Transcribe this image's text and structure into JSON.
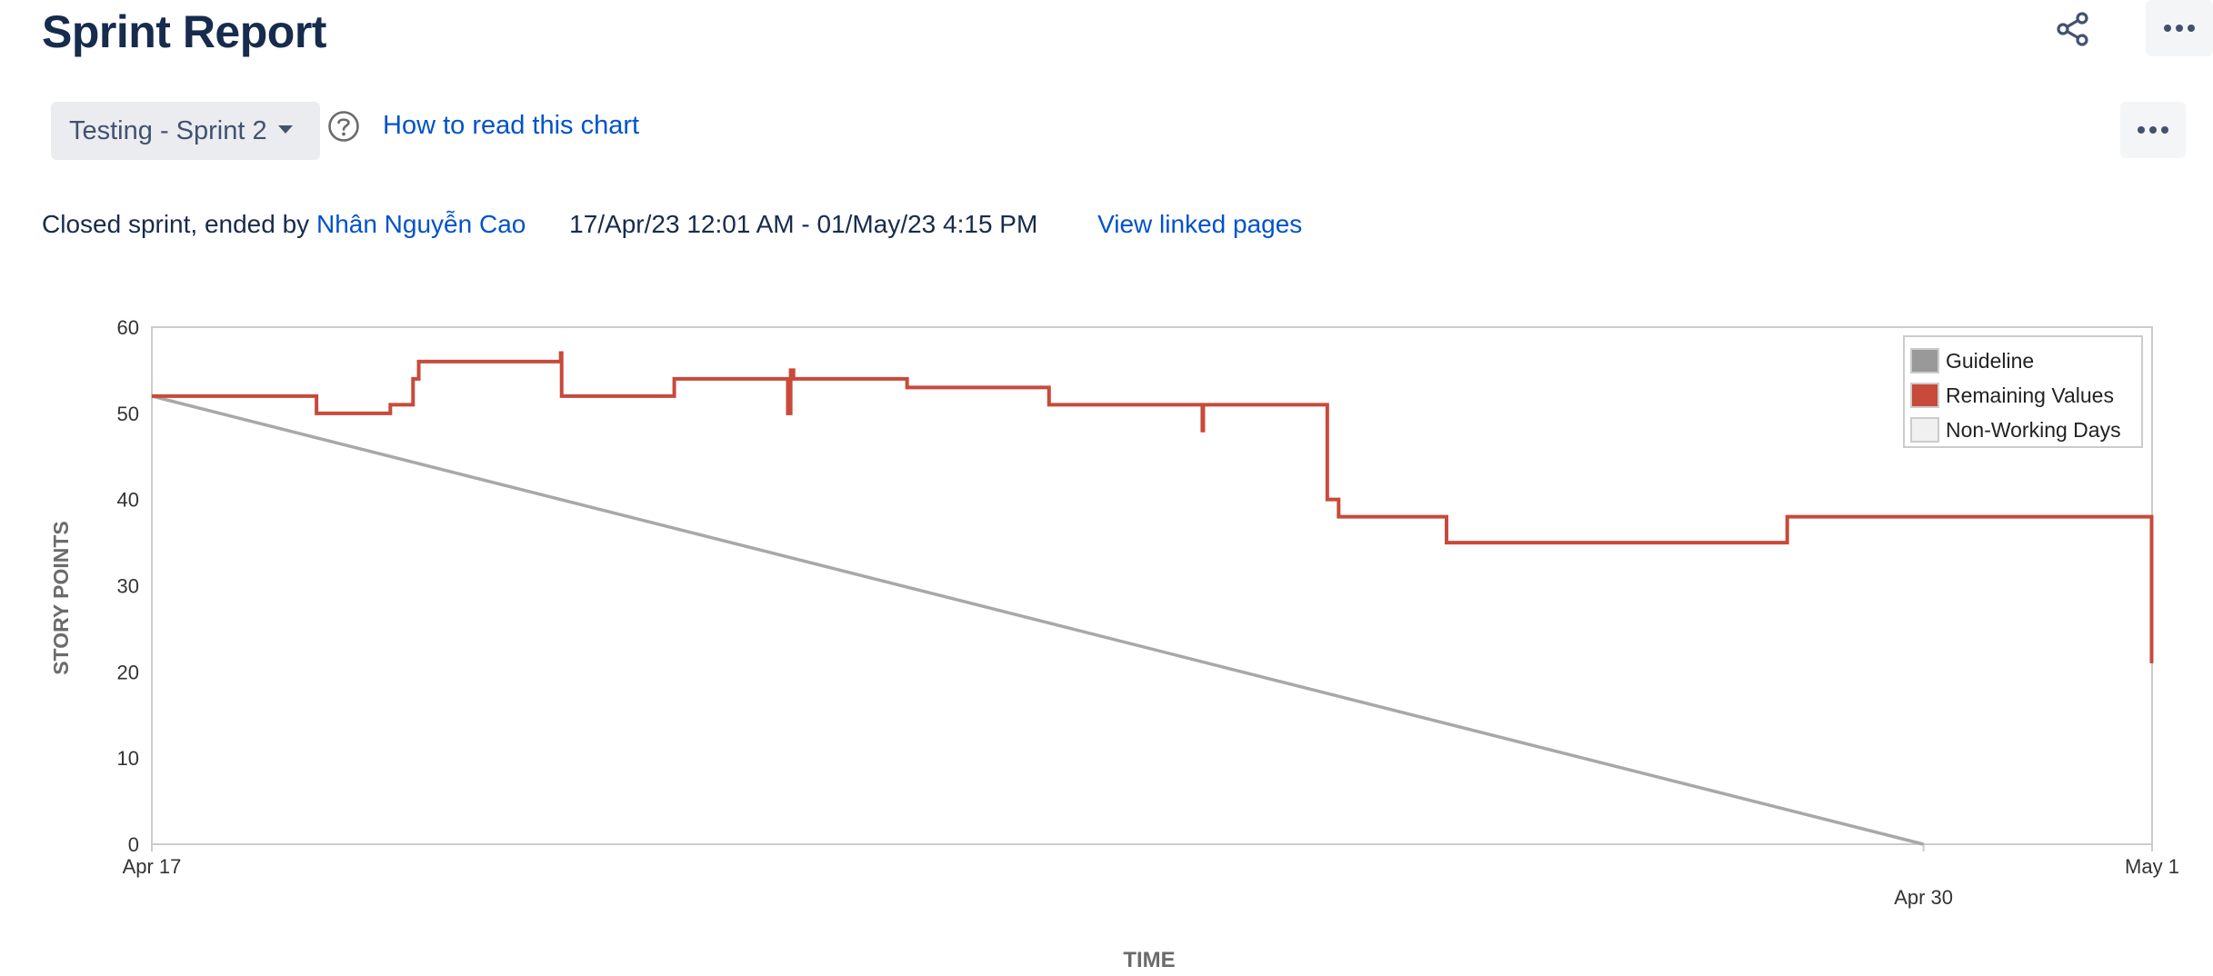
{
  "header": {
    "title": "Sprint Report"
  },
  "toolbar": {
    "sprint_select": "Testing - Sprint 2",
    "help_link": "How to read this chart"
  },
  "sprint_info": {
    "status_prefix": "Closed sprint, ended by",
    "user": "Nhân Nguyễn Cao",
    "date_range": "17/Apr/23 12:01 AM - 01/May/23 4:15 PM",
    "linked_pages": "View linked pages"
  },
  "icons": {
    "share": "share-icon",
    "more": "more-horizontal-icon",
    "help": "question-circle-icon",
    "dropdown": "chevron-down-icon"
  },
  "colors": {
    "guideline": "#a8a8a8",
    "remaining": "#c84a3a",
    "link": "#0052cc",
    "title": "#172b4d"
  },
  "chart_data": {
    "type": "line",
    "xlabel": "TIME",
    "ylabel": "STORY POINTS",
    "ylim": [
      0,
      60
    ],
    "yticks": [
      0,
      10,
      20,
      30,
      40,
      50,
      60
    ],
    "xlim": [
      "2023-04-17 00:00",
      "2023-05-01 16:15"
    ],
    "xticks": [
      {
        "label": "Apr 17",
        "date": "2023-04-17 00:00"
      },
      {
        "label": "Apr 30",
        "date": "2023-04-30 00:00"
      },
      {
        "label": "May 1",
        "date": "2023-05-01 16:15"
      }
    ],
    "legend_position": "top-right",
    "legend": [
      "Guideline",
      "Remaining Values",
      "Non-Working Days"
    ],
    "series": [
      {
        "name": "Guideline",
        "color": "#a8a8a8",
        "points": [
          {
            "x": "2023-04-17 00:00",
            "y": 52
          },
          {
            "x": "2023-04-30 00:00",
            "y": 0
          }
        ]
      },
      {
        "name": "Remaining Values",
        "color": "#c84a3a",
        "step": true,
        "points": [
          {
            "x": "2023-04-17 00:00",
            "y": 52
          },
          {
            "x": "2023-04-18 05:00",
            "y": 50
          },
          {
            "x": "2023-04-18 18:00",
            "y": 51
          },
          {
            "x": "2023-04-18 22:00",
            "y": 54
          },
          {
            "x": "2023-04-18 23:00",
            "y": 56
          },
          {
            "x": "2023-04-20 00:00",
            "y": 57
          },
          {
            "x": "2023-04-20 00:10",
            "y": 52
          },
          {
            "x": "2023-04-20 20:00",
            "y": 54
          },
          {
            "x": "2023-04-21 16:00",
            "y": 50
          },
          {
            "x": "2023-04-21 16:30",
            "y": 55
          },
          {
            "x": "2023-04-21 17:00",
            "y": 54
          },
          {
            "x": "2023-04-22 13:00",
            "y": 53
          },
          {
            "x": "2023-04-23 14:00",
            "y": 51
          },
          {
            "x": "2023-04-24 17:00",
            "y": 48
          },
          {
            "x": "2023-04-24 17:10",
            "y": 51
          },
          {
            "x": "2023-04-25 15:00",
            "y": 40
          },
          {
            "x": "2023-04-25 17:00",
            "y": 38
          },
          {
            "x": "2023-04-26 12:00",
            "y": 35
          },
          {
            "x": "2023-04-29 00:00",
            "y": 38
          },
          {
            "x": "2023-05-01 16:10",
            "y": 21
          }
        ]
      }
    ]
  }
}
